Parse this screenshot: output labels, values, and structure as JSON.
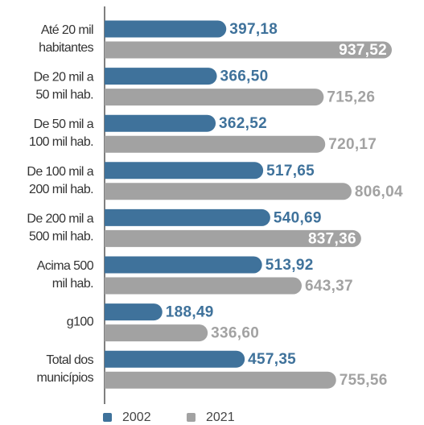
{
  "chart_data": {
    "type": "bar",
    "orientation": "horizontal",
    "categories": [
      "Até 20 mil\nhabitantes",
      "De 20 mil a\n50 mil hab.",
      "De 50 mil a\n100 mil hab.",
      "De 100 mil a\n200 mil hab.",
      "De 200 mil a\n500 mil hab.",
      "Acima 500\nmil hab.",
      "g100",
      "Total dos\nmunicípios"
    ],
    "series": [
      {
        "name": "2002",
        "color": "#3f729b",
        "values": [
          397.18,
          366.5,
          362.52,
          517.65,
          540.69,
          513.92,
          188.49,
          457.35
        ],
        "value_labels": [
          "397,18",
          "366,50",
          "362,52",
          "517,65",
          "540,69",
          "513,92",
          "188,49",
          "457,35"
        ]
      },
      {
        "name": "2021",
        "color": "#a2a2a2",
        "values": [
          937.52,
          715.26,
          720.17,
          806.04,
          837.36,
          643.37,
          336.6,
          755.56
        ],
        "value_labels": [
          "937,52",
          "715,26",
          "720,17",
          "806,04",
          "837,36",
          "643,37",
          "336,60",
          "755,56"
        ]
      }
    ]
  }
}
